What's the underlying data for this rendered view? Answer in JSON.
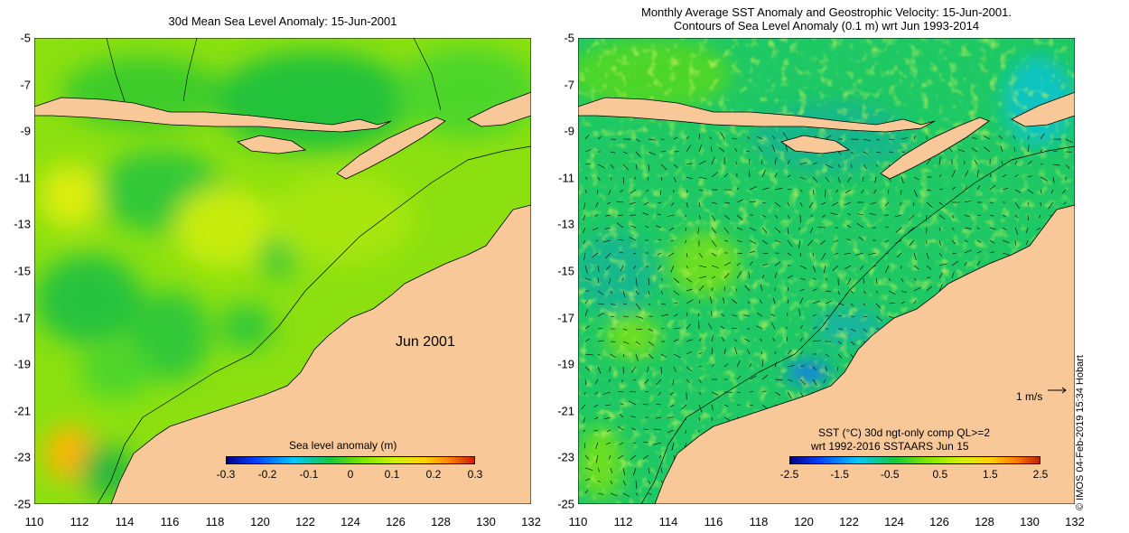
{
  "left_panel": {
    "title": "30d Mean Sea Level Anomaly: 15-Jun-2001",
    "month_label": "Jun 2001",
    "colorbar": {
      "title": "Sea level anomaly (m)",
      "ticks": [
        "-0.3",
        "-0.2",
        "-0.1",
        "0",
        "0.1",
        "0.2",
        "0.3"
      ],
      "colors": [
        "#00007f",
        "#0044ff",
        "#00c8ff",
        "#19c83c",
        "#7fe600",
        "#d2f000",
        "#ffd200",
        "#ff7f00",
        "#c81e00"
      ]
    }
  },
  "right_panel": {
    "title_line1": "Monthly Average SST Anomaly  and Geostrophic Velocity: 15-Jun-2001.",
    "title_line2": "Contours of Sea Level Anomaly (0.1 m) wrt Jun 1993-2014",
    "legend_line1": "SST (°C) 30d ngt-only comp QL>=2",
    "legend_line2": "wrt 1992-2016 SSTAARS Jun 15",
    "scale_label": "1 m/s",
    "colorbar": {
      "ticks": [
        "-2.5",
        "-1.5",
        "-0.5",
        "0.5",
        "1.5",
        "2.5"
      ],
      "colors": [
        "#00007f",
        "#0044ff",
        "#00c8ff",
        "#19c83c",
        "#7fe600",
        "#d2f000",
        "#ffd200",
        "#ff7f00",
        "#c81e00"
      ]
    }
  },
  "axes": {
    "y_ticks": [
      "-5",
      "-7",
      "-9",
      "-11",
      "-13",
      "-15",
      "-17",
      "-19",
      "-21",
      "-23",
      "-25"
    ],
    "x_ticks": [
      "110",
      "112",
      "114",
      "116",
      "118",
      "120",
      "122",
      "124",
      "126",
      "128",
      "130",
      "132"
    ]
  },
  "credit": "©  IMOS 04-Feb-2019 15:34 Hobart",
  "colors": {
    "land": "#f8c898",
    "sla_base": "#8ce010",
    "sst_base": "#1ec864",
    "coast": "#000000"
  }
}
